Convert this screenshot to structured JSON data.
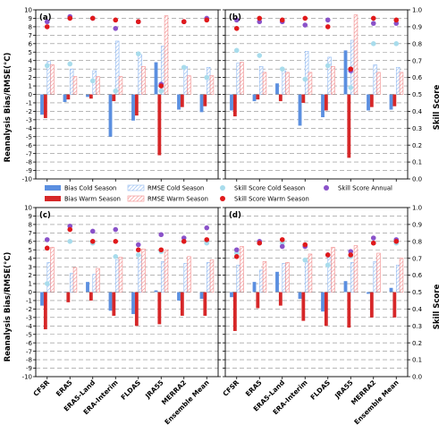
{
  "figure": {
    "left_ylabel": "Reanalysis Bias/RMSE(°C)",
    "right_ylabel": "Skill Score"
  },
  "colors": {
    "bias_cold": "#5b8fe0",
    "bias_warm": "#d62728",
    "rmse_cold": "#8fb8f0",
    "rmse_warm": "#f28a8a",
    "skill_cold": "#a8dcec",
    "skill_warm": "#e0191b",
    "skill_annual": "#8a52c9"
  },
  "legend": {
    "items": [
      {
        "key": "bias_cold",
        "kind": "bar",
        "label": "Bias Cold Season"
      },
      {
        "key": "rmse_cold",
        "kind": "hatch",
        "label": "RMSE Cold Season"
      },
      {
        "key": "skill_cold",
        "kind": "dot",
        "label": "Skill Score Cold Season"
      },
      {
        "key": "skill_annual",
        "kind": "dot",
        "label": "Skill Score Annual"
      },
      {
        "key": "bias_warm",
        "kind": "bar",
        "label": "Bias Warm Season"
      },
      {
        "key": "rmse_warm",
        "kind": "hatch",
        "label": "RMSE Warm Season"
      },
      {
        "key": "skill_warm",
        "kind": "dot",
        "label": "Skill Score Warm Season"
      }
    ]
  },
  "chart_data": [
    {
      "panel": "(a)",
      "type": "bar",
      "categories": [
        "CFSR",
        "ERA5",
        "ERA5-Land",
        "ERA-Interim",
        "FLDAS",
        "JRA55",
        "MERRA2",
        "Ensemble Mean"
      ],
      "ylim_left": [
        -10,
        10
      ],
      "ylim_right": [
        0,
        1
      ],
      "grid": true,
      "ylabel": "Reanalysis Bias/RMSE(°C)",
      "series": [
        {
          "name": "Bias Cold Season",
          "axis": "left",
          "values": [
            -2.4,
            -0.9,
            -0.3,
            -5.0,
            -3.1,
            3.8,
            -1.8,
            -2.1
          ]
        },
        {
          "name": "Bias Warm Season",
          "axis": "left",
          "values": [
            -2.8,
            -0.6,
            -0.5,
            -0.8,
            -2.5,
            -7.2,
            -1.5,
            -1.4
          ]
        },
        {
          "name": "RMSE Cold Season",
          "axis": "left",
          "values": [
            3.9,
            3.0,
            2.8,
            6.3,
            4.7,
            5.7,
            3.3,
            3.2
          ]
        },
        {
          "name": "RMSE Warm Season",
          "axis": "left",
          "values": [
            3.5,
            2.1,
            2.1,
            2.1,
            3.3,
            9.3,
            2.2,
            2.2
          ]
        },
        {
          "name": "Skill Score Cold Season",
          "axis": "right",
          "values": [
            0.67,
            0.68,
            0.58,
            0.52,
            0.74,
            0.52,
            0.66,
            0.6
          ]
        },
        {
          "name": "Skill Score Warm Season",
          "axis": "right",
          "values": [
            0.9,
            0.95,
            0.95,
            0.94,
            0.93,
            0.55,
            0.93,
            0.94
          ]
        },
        {
          "name": "Skill Score Annual",
          "axis": "right",
          "values": [
            0.93,
            0.96,
            0.95,
            0.89,
            0.93,
            0.56,
            0.93,
            0.95
          ]
        }
      ]
    },
    {
      "panel": "(b)",
      "type": "bar",
      "categories": [
        "CFSR",
        "ERA5",
        "ERA5-Land",
        "ERA-Interim",
        "FLDAS",
        "JRA55",
        "MERRA2",
        "Ensemble Mean"
      ],
      "ylim_left": [
        -10,
        10
      ],
      "ylim_right": [
        0,
        1
      ],
      "grid": true,
      "ylabel": "Skill Score",
      "series": [
        {
          "name": "Bias Cold Season",
          "axis": "left",
          "values": [
            -1.9,
            -0.8,
            1.3,
            -3.7,
            -2.7,
            5.2,
            -1.9,
            -1.8
          ]
        },
        {
          "name": "Bias Warm Season",
          "axis": "left",
          "values": [
            -2.6,
            -0.6,
            -0.8,
            -1.0,
            -1.9,
            -7.5,
            -1.5,
            -1.4
          ]
        },
        {
          "name": "RMSE Cold Season",
          "axis": "left",
          "values": [
            3.7,
            3.3,
            2.8,
            5.1,
            4.4,
            6.4,
            3.5,
            3.2
          ]
        },
        {
          "name": "RMSE Warm Season",
          "axis": "left",
          "values": [
            3.8,
            2.6,
            2.6,
            2.6,
            3.3,
            9.4,
            2.6,
            2.6
          ]
        },
        {
          "name": "Skill Score Cold Season",
          "axis": "right",
          "values": [
            0.76,
            0.73,
            0.65,
            0.59,
            0.67,
            0.54,
            0.8,
            0.8
          ]
        },
        {
          "name": "Skill Score Warm Season",
          "axis": "right",
          "values": [
            0.89,
            0.95,
            0.94,
            0.95,
            0.9,
            0.65,
            0.95,
            0.94
          ]
        },
        {
          "name": "Skill Score Annual",
          "axis": "right",
          "values": [
            0.94,
            0.93,
            0.93,
            0.91,
            0.94,
            0.64,
            0.92,
            0.92
          ]
        }
      ]
    },
    {
      "panel": "(c)",
      "type": "bar",
      "categories": [
        "CFSR",
        "ERA5",
        "ERA5-Land",
        "ERA-Interim",
        "FLDAS",
        "JRA55",
        "MERRA2",
        "Ensemble Mean"
      ],
      "ylim_left": [
        -10,
        10
      ],
      "ylim_right": [
        0,
        1
      ],
      "grid": true,
      "ylabel": "Reanalysis Bias/RMSE(°C)",
      "series": [
        {
          "name": "Bias Cold Season",
          "axis": "left",
          "values": [
            -1.6,
            0.0,
            1.2,
            -2.2,
            -2.6,
            0.2,
            -1.0,
            -0.8
          ]
        },
        {
          "name": "Bias Warm Season",
          "axis": "left",
          "values": [
            -4.4,
            -1.2,
            -1.0,
            -2.8,
            -4.0,
            -3.8,
            -2.8,
            -2.8
          ]
        },
        {
          "name": "RMSE Cold Season",
          "axis": "left",
          "values": [
            3.5,
            2.2,
            2.1,
            3.8,
            4.3,
            3.6,
            3.4,
            3.5
          ]
        },
        {
          "name": "RMSE Warm Season",
          "axis": "left",
          "values": [
            5.3,
            2.9,
            2.8,
            4.1,
            5.1,
            5.0,
            4.2,
            3.8
          ]
        },
        {
          "name": "Skill Score Cold Season",
          "axis": "right",
          "values": [
            0.55,
            0.8,
            0.79,
            0.71,
            0.72,
            0.74,
            0.8,
            0.79
          ]
        },
        {
          "name": "Skill Score Warm Season",
          "axis": "right",
          "values": [
            0.76,
            0.87,
            0.8,
            0.8,
            0.75,
            0.75,
            0.8,
            0.81
          ]
        },
        {
          "name": "Skill Score Annual",
          "axis": "right",
          "values": [
            0.81,
            0.89,
            0.86,
            0.87,
            0.78,
            0.84,
            0.82,
            0.88
          ]
        }
      ]
    },
    {
      "panel": "(d)",
      "type": "bar",
      "categories": [
        "CFSR",
        "ERA5",
        "ERA5-Land",
        "ERA-Interim",
        "FLDAS",
        "JRA55",
        "MERRA2",
        "Ensemble Mean"
      ],
      "ylim_left": [
        -10,
        10
      ],
      "ylim_right": [
        0,
        1
      ],
      "grid": true,
      "ylabel": "Skill Score",
      "series": [
        {
          "name": "Bias Cold Season",
          "axis": "left",
          "values": [
            -0.6,
            1.2,
            2.4,
            -0.8,
            -2.3,
            1.3,
            -0.2,
            0.5
          ]
        },
        {
          "name": "Bias Warm Season",
          "axis": "left",
          "values": [
            -4.6,
            -1.9,
            -1.6,
            -3.4,
            -4.0,
            -4.2,
            -3.0,
            -3.0
          ]
        },
        {
          "name": "RMSE Cold Season",
          "axis": "left",
          "values": [
            3.2,
            2.6,
            3.4,
            3.6,
            4.1,
            3.5,
            3.6,
            3.2
          ]
        },
        {
          "name": "RMSE Warm Season",
          "axis": "left",
          "values": [
            5.4,
            3.6,
            3.5,
            4.5,
            5.3,
            5.5,
            4.6,
            4.0
          ]
        },
        {
          "name": "Skill Score Cold Season",
          "axis": "right",
          "values": [
            0.73,
            0.79,
            0.79,
            0.69,
            0.66,
            0.71,
            0.79,
            0.79
          ]
        },
        {
          "name": "Skill Score Warm Season",
          "axis": "right",
          "values": [
            0.71,
            0.79,
            0.81,
            0.78,
            0.72,
            0.72,
            0.79,
            0.8
          ]
        },
        {
          "name": "Skill Score Annual",
          "axis": "right",
          "values": [
            0.75,
            0.8,
            0.77,
            0.77,
            0.72,
            0.74,
            0.82,
            0.81
          ]
        }
      ]
    }
  ]
}
